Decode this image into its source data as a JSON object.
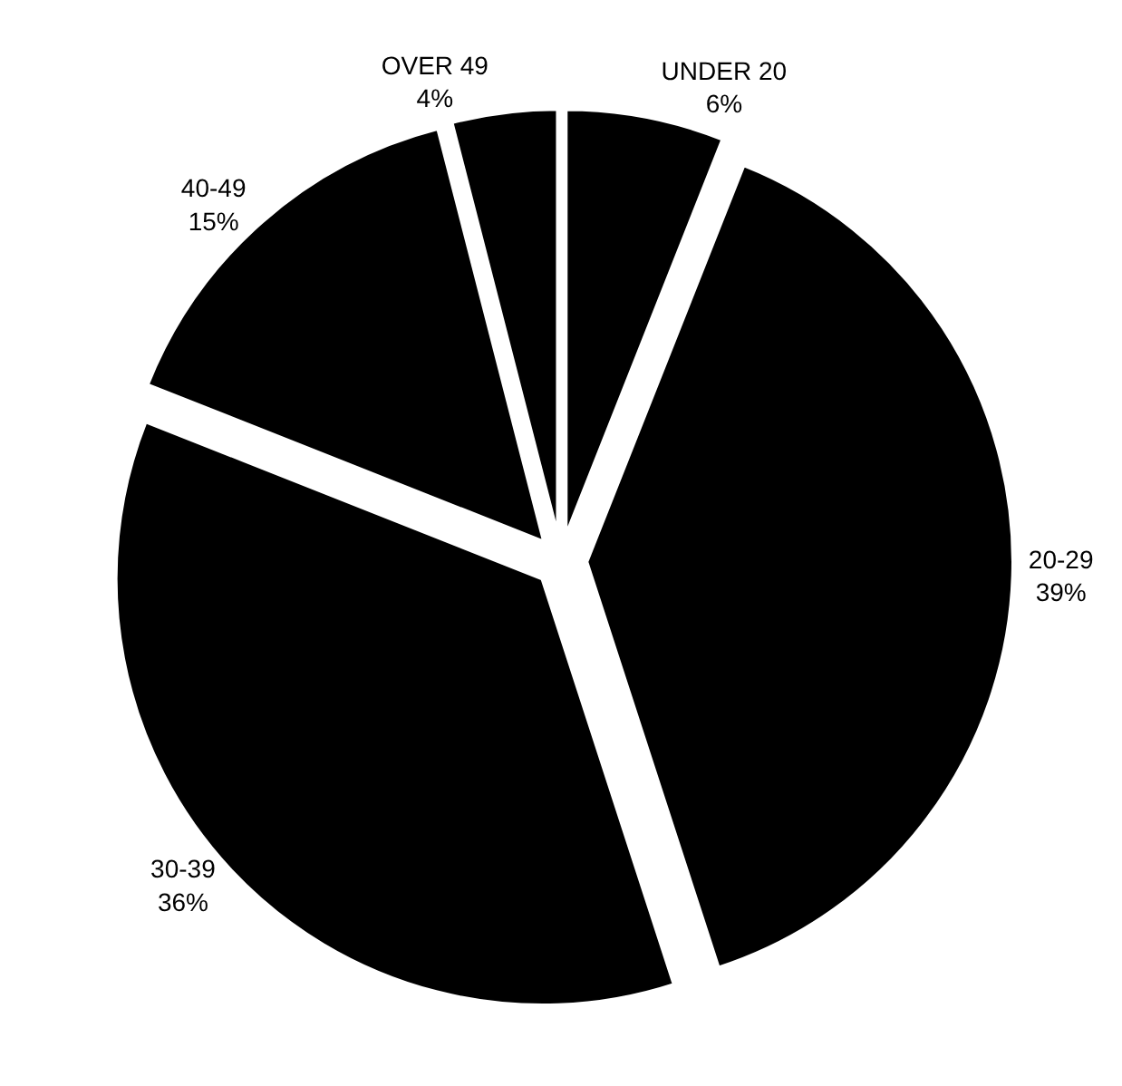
{
  "chart_data": {
    "type": "pie",
    "categories": [
      "UNDER 20",
      "20-29",
      "30-39",
      "40-49",
      "OVER 49"
    ],
    "values": [
      6,
      39,
      36,
      15,
      4
    ],
    "value_labels": [
      "6%",
      "39%",
      "36%",
      "15%",
      "4%"
    ],
    "colors": [
      "#000000",
      "#000000",
      "#000000",
      "#000000",
      "#000000"
    ],
    "legend": false
  }
}
